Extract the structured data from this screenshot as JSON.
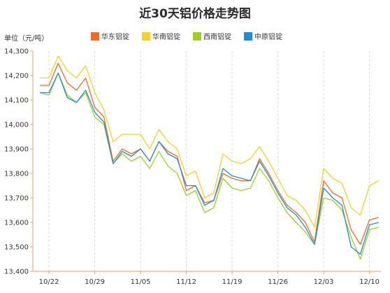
{
  "chart_data": {
    "type": "line",
    "title": "近30天铝价格走势图",
    "ylabel": "单位（元/吨）",
    "xlabel": "",
    "ylim": [
      13400,
      14300
    ],
    "yticks": [
      "13,400",
      "13,500",
      "13,600",
      "13,700",
      "13,800",
      "13,900",
      "14,000",
      "14,100",
      "14,200",
      "14,300"
    ],
    "x_tick_labels": [
      "10/22",
      "10/29",
      "11/05",
      "11/12",
      "11/19",
      "11/26",
      "12/03",
      "12/10"
    ],
    "grid": true,
    "legend_position": "top",
    "series": [
      {
        "name": "华东铝锭",
        "color": "#f56a1f",
        "values": [
          14160,
          14160,
          14250,
          14170,
          14140,
          14190,
          14070,
          14030,
          13850,
          13900,
          13880,
          13900,
          13850,
          13930,
          13890,
          13870,
          13730,
          13750,
          13680,
          13690,
          13800,
          13780,
          13770,
          13770,
          13860,
          13800,
          13730,
          13670,
          13640,
          13600,
          13520,
          13770,
          13720,
          13700,
          13570,
          13510,
          13610,
          13620
        ]
      },
      {
        "name": "华南铝锭",
        "color": "#f7d21e",
        "values": [
          14190,
          14190,
          14280,
          14220,
          14190,
          14240,
          14130,
          14060,
          13930,
          13960,
          13960,
          13960,
          13900,
          13980,
          13930,
          13900,
          13790,
          13810,
          13700,
          13720,
          13880,
          13850,
          13840,
          13860,
          13910,
          13850,
          13780,
          13710,
          13690,
          13650,
          13580,
          13820,
          13780,
          13760,
          13660,
          13630,
          13750,
          13770
        ]
      },
      {
        "name": "西南铝锭",
        "color": "#9ed11f",
        "values": [
          14130,
          14120,
          14210,
          14120,
          14090,
          14130,
          14030,
          14000,
          13840,
          13880,
          13850,
          13870,
          13820,
          13890,
          13830,
          13800,
          13710,
          13730,
          13640,
          13660,
          13780,
          13740,
          13730,
          13740,
          13820,
          13770,
          13700,
          13640,
          13600,
          13560,
          13510,
          13700,
          13690,
          13650,
          13540,
          13450,
          13570,
          13580
        ]
      },
      {
        "name": "中原铝锭",
        "color": "#1f8ed3",
        "values": [
          14130,
          14130,
          14210,
          14110,
          14090,
          14140,
          14050,
          14010,
          13840,
          13890,
          13870,
          13900,
          13850,
          13930,
          13880,
          13860,
          13750,
          13750,
          13670,
          13690,
          13820,
          13790,
          13780,
          13770,
          13850,
          13790,
          13720,
          13660,
          13630,
          13580,
          13510,
          13740,
          13700,
          13670,
          13500,
          13470,
          13590,
          13600
        ]
      }
    ]
  }
}
